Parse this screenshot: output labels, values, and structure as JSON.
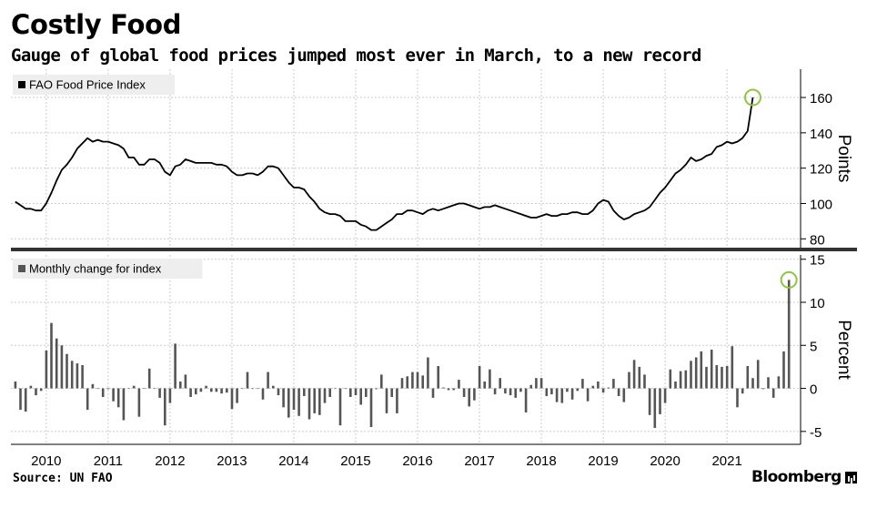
{
  "header": {
    "title": "Costly Food",
    "subtitle": "Gauge of global food prices jumped most ever in March, to a new record"
  },
  "footer": {
    "source": "Source: UN FAO",
    "brand": "Bloomberg"
  },
  "colors": {
    "line": "#000000",
    "bar": "#555555",
    "highlight_circle": "#8dc63f",
    "legend_background": "#eeeeee",
    "grid": "#cccccc",
    "panel_divider": "#333333"
  },
  "chart_data": [
    {
      "type": "line",
      "legend": "FAO Food Price Index",
      "ylabel": "Points",
      "yticks": [
        80,
        100,
        120,
        140,
        160
      ],
      "ylim": [
        75,
        176
      ],
      "x_start": "2009-07",
      "x_end": "2022-03",
      "xticks": [
        "2010",
        "2011",
        "2012",
        "2013",
        "2014",
        "2015",
        "2016",
        "2017",
        "2018",
        "2019",
        "2020",
        "2021"
      ],
      "grid": true,
      "legend_position": "top-left",
      "highlight": "last point (March 2022)",
      "values": [
        101,
        99,
        97,
        97,
        96,
        96,
        100,
        106,
        113,
        119,
        122,
        126,
        131,
        134,
        137,
        135,
        136,
        135,
        135,
        134,
        133,
        131,
        126,
        126,
        122,
        122,
        125,
        125,
        123,
        118,
        116,
        121,
        122,
        125,
        124,
        123,
        123,
        123,
        123,
        122,
        122,
        121,
        118,
        116,
        116,
        117,
        117,
        116,
        118,
        121,
        121,
        120,
        116,
        112,
        109,
        109,
        108,
        104,
        101,
        97,
        95,
        94,
        94,
        93,
        90,
        90,
        90,
        88,
        87,
        85,
        85,
        87,
        89,
        91,
        94,
        94,
        96,
        96,
        95,
        94,
        96,
        97,
        96,
        97,
        98,
        99,
        100,
        100,
        99,
        98,
        97,
        98,
        98,
        99,
        98,
        97,
        96,
        95,
        94,
        93,
        92,
        92,
        93,
        94,
        93,
        93,
        94,
        94,
        95,
        95,
        94,
        94,
        96,
        100,
        102,
        101,
        96,
        93,
        91,
        92,
        94,
        95,
        96,
        98,
        102,
        106,
        109,
        113,
        117,
        119,
        122,
        126,
        124,
        125,
        127,
        128,
        132,
        133,
        135,
        134,
        135,
        137,
        141,
        160
      ]
    },
    {
      "type": "bar",
      "legend": "Monthly change for index",
      "ylabel": "Percent",
      "yticks": [
        -5,
        0,
        5,
        10,
        15
      ],
      "ylim": [
        -6.5,
        15.5
      ],
      "grid": true,
      "legend_position": "top-left",
      "highlight": "last bar (March 2022)",
      "values": [
        0.8,
        -2.5,
        -2.7,
        0.3,
        -0.8,
        -0.3,
        4.4,
        7.6,
        5.8,
        5,
        4,
        3.2,
        2.9,
        2.7,
        -2.5,
        0.5,
        0,
        -1,
        -0.1,
        -1.5,
        -2.2,
        -3.7,
        0,
        0.3,
        -3.3,
        0,
        2.3,
        0,
        -1.1,
        -4.3,
        -1.7,
        5.2,
        0.8,
        1.6,
        -1,
        -0.7,
        -0.4,
        0.3,
        -0.4,
        -0.4,
        -0.6,
        -0.5,
        -2.4,
        -1.7,
        0,
        1.9,
        0,
        0,
        -1.3,
        1.9,
        0.3,
        -0.8,
        -2.2,
        -3.4,
        -2.5,
        -3.2,
        -0.9,
        -3.6,
        -2.9,
        -3.1,
        -1.7,
        -1,
        0,
        -4.3,
        0,
        -1,
        -0.8,
        -1.9,
        -1,
        -4.5,
        -0.1,
        1.6,
        -2.9,
        -1,
        -2.9,
        1.2,
        1.4,
        1.9,
        1.9,
        1.5,
        3.6,
        -1.1,
        2.6,
        0.1,
        -0.2,
        -0.2,
        1,
        -1,
        -2.1,
        -1.4,
        2.6,
        0.8,
        2.2,
        -0.7,
        1.2,
        -0.6,
        -0.8,
        -1.1,
        -0.4,
        -2.8,
        0.4,
        1.2,
        1.2,
        -0.9,
        -0.7,
        -1.6,
        -1.7,
        -0.4,
        -1.3,
        -0.3,
        1.1,
        -1.5,
        0.3,
        0.8,
        -0.5,
        0.1,
        1.1,
        -0.9,
        -1.6,
        1.9,
        3.3,
        2.5,
        1.6,
        -3.1,
        -4.6,
        -3,
        -1.7,
        2.2,
        0.8,
        2,
        2.1,
        3.2,
        3.6,
        4.3,
        2.5,
        4.5,
        2.7,
        2.5,
        2.6,
        4.9,
        -2.2,
        -0.6,
        2.6,
        1.2,
        3.3,
        -0.1,
        1.3,
        -1.1,
        1.4,
        4.3,
        12.6
      ]
    }
  ]
}
